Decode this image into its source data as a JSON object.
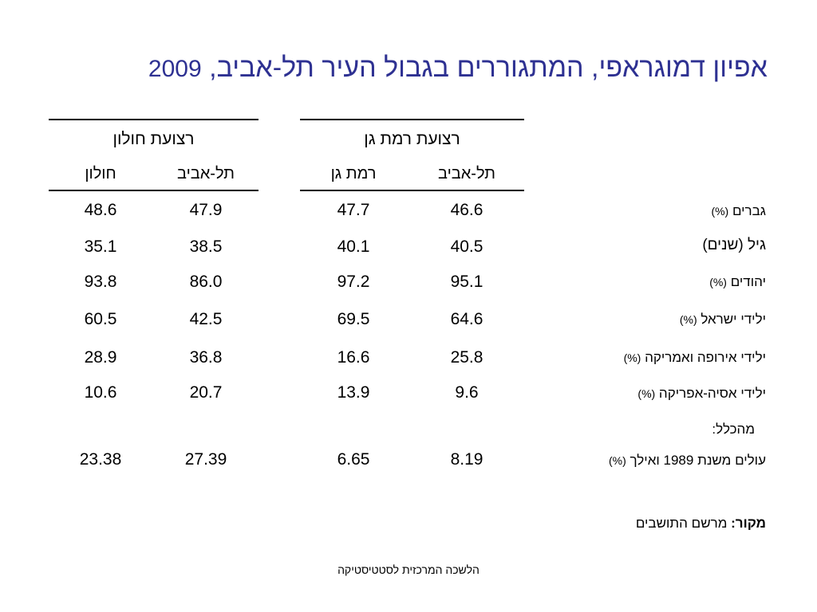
{
  "title": {
    "text": "אפיון דמוגראפי, המתגוררים בגבול העיר תל-אביב,",
    "year": "2009"
  },
  "groups": {
    "ramat_gan": {
      "header": "רצועת רמת גן",
      "col_tel_aviv": "תל-אביב",
      "col_other": "רמת גן"
    },
    "holon": {
      "header": "רצועת חולון",
      "col_tel_aviv": "תל-אביב",
      "col_other": "חולון"
    }
  },
  "rows": [
    {
      "label": "גברים",
      "unit": "(%)",
      "rg_ta": "46.6",
      "rg_rg": "47.7",
      "h_ta": "47.9",
      "h_h": "48.6"
    },
    {
      "label": "גיל (שנים)",
      "unit": "",
      "rg_ta": "40.5",
      "rg_rg": "40.1",
      "h_ta": "38.5",
      "h_h": "35.1"
    },
    {
      "label": "יהודים",
      "unit": "(%)",
      "rg_ta": "95.1",
      "rg_rg": "97.2",
      "h_ta": "86.0",
      "h_h": "93.8"
    },
    {
      "label": "ילידי ישראל",
      "unit": "(%)",
      "rg_ta": "64.6",
      "rg_rg": "69.5",
      "h_ta": "42.5",
      "h_h": "60.5"
    },
    {
      "label": "ילידי אירופה ואמריקה",
      "unit": "(%)",
      "rg_ta": "25.8",
      "rg_rg": "16.6",
      "h_ta": "36.8",
      "h_h": "28.9"
    },
    {
      "label": "ילידי אסיה-אפריקה",
      "unit": "(%)",
      "rg_ta": "9.6",
      "rg_rg": "13.9",
      "h_ta": "20.7",
      "h_h": "10.6"
    },
    {
      "label": "מהכלל:",
      "unit": "",
      "rg_ta": "",
      "rg_rg": "",
      "h_ta": "",
      "h_h": ""
    },
    {
      "label": "עולים משנת 1989 ואילך",
      "unit": "(%)",
      "rg_ta": "8.19",
      "rg_rg": "6.65",
      "h_ta": "27.39",
      "h_h": "23.38"
    }
  ],
  "source": {
    "label": "מקור:",
    "text": "מרשם התושבים"
  },
  "footer": "הלשכה המרכזית לסטטיסטיקה"
}
